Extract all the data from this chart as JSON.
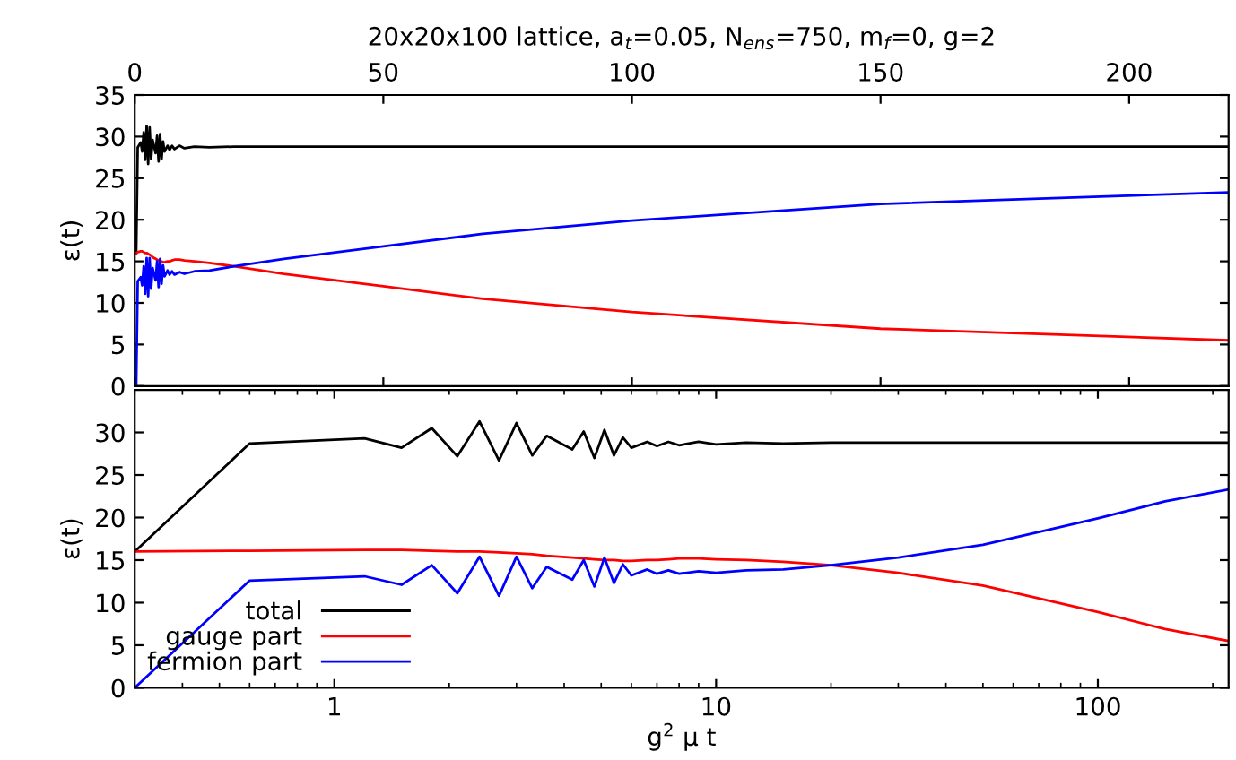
{
  "chart_data": [
    {
      "type": "line",
      "title": "20x20x100 lattice, a$_{t}$=0.05, N$_{ens}$=750, m$_{f}$=0, g=2",
      "ylabel": "ε(t)",
      "x": [
        0.3,
        0.6,
        1.2,
        1.5,
        1.8,
        2.1,
        2.4,
        2.7,
        3.0,
        3.3,
        3.6,
        4.2,
        4.5,
        4.8,
        5.1,
        5.4,
        5.7,
        6.0,
        6.6,
        7.0,
        7.5,
        8,
        9,
        10,
        12,
        15,
        20,
        30,
        50,
        70,
        100,
        150,
        220
      ],
      "series": [
        {
          "color": "#000000",
          "values": [
            16,
            28.7,
            29.3,
            28.2,
            30.5,
            27.2,
            31.3,
            26.7,
            31.1,
            27.3,
            29.6,
            28.0,
            30.1,
            27.0,
            30.3,
            27.3,
            29.4,
            28.2,
            28.9,
            28.4,
            28.9,
            28.5,
            28.9,
            28.6,
            28.8,
            28.7,
            28.8,
            28.8,
            28.8,
            28.8,
            28.8,
            28.8,
            28.8
          ]
        },
        {
          "color": "#ff0000",
          "values": [
            16,
            16.1,
            16.2,
            16.2,
            16.1,
            16.0,
            16.0,
            15.9,
            15.8,
            15.7,
            15.5,
            15.3,
            15.2,
            15.1,
            15.0,
            15.0,
            14.9,
            14.9,
            15.0,
            15.0,
            15.1,
            15.2,
            15.2,
            15.1,
            15.0,
            14.8,
            14.4,
            13.5,
            12.0,
            10.5,
            8.9,
            6.9,
            5.5
          ]
        },
        {
          "color": "#0000ff",
          "values": [
            0,
            12.6,
            13.1,
            12.1,
            14.4,
            11.1,
            15.4,
            10.8,
            15.4,
            11.7,
            14.2,
            12.7,
            15.0,
            11.9,
            15.3,
            12.3,
            14.5,
            13.2,
            13.9,
            13.4,
            13.8,
            13.4,
            13.7,
            13.5,
            13.8,
            13.9,
            14.4,
            15.3,
            16.8,
            18.3,
            19.9,
            21.9,
            23.3
          ]
        }
      ],
      "xlim": [
        0,
        220
      ],
      "xticks": [
        0,
        50,
        100,
        150,
        200
      ],
      "ylim": [
        0,
        35
      ],
      "yticks": [
        0,
        5,
        10,
        15,
        20,
        25,
        30,
        35
      ],
      "grid": false,
      "legend": false
    },
    {
      "type": "line",
      "xlabel": "g$^{2}$ μ t",
      "ylabel": "ε(t)",
      "log": "x",
      "x": [
        0.3,
        0.6,
        1.2,
        1.5,
        1.8,
        2.1,
        2.4,
        2.7,
        3.0,
        3.3,
        3.6,
        4.2,
        4.5,
        4.8,
        5.1,
        5.4,
        5.7,
        6.0,
        6.6,
        7.0,
        7.5,
        8,
        9,
        10,
        12,
        15,
        20,
        30,
        50,
        70,
        100,
        150,
        220
      ],
      "series": [
        {
          "name": "total",
          "color": "#000000",
          "values": [
            16,
            28.7,
            29.3,
            28.2,
            30.5,
            27.2,
            31.3,
            26.7,
            31.1,
            27.3,
            29.6,
            28.0,
            30.1,
            27.0,
            30.3,
            27.3,
            29.4,
            28.2,
            28.9,
            28.4,
            28.9,
            28.5,
            28.9,
            28.6,
            28.8,
            28.7,
            28.8,
            28.8,
            28.8,
            28.8,
            28.8,
            28.8,
            28.8
          ]
        },
        {
          "name": "gauge part",
          "color": "#ff0000",
          "values": [
            16,
            16.1,
            16.2,
            16.2,
            16.1,
            16.0,
            16.0,
            15.9,
            15.8,
            15.7,
            15.5,
            15.3,
            15.2,
            15.1,
            15.0,
            15.0,
            14.9,
            14.9,
            15.0,
            15.0,
            15.1,
            15.2,
            15.2,
            15.1,
            15.0,
            14.8,
            14.4,
            13.5,
            12.0,
            10.5,
            8.9,
            6.9,
            5.5
          ]
        },
        {
          "name": "fermion part",
          "color": "#0000ff",
          "values": [
            0,
            12.6,
            13.1,
            12.1,
            14.4,
            11.1,
            15.4,
            10.8,
            15.4,
            11.7,
            14.2,
            12.7,
            15.0,
            11.9,
            15.3,
            12.3,
            14.5,
            13.2,
            13.9,
            13.4,
            13.8,
            13.4,
            13.7,
            13.5,
            13.8,
            13.9,
            14.4,
            15.3,
            16.8,
            18.3,
            19.9,
            21.9,
            23.3
          ]
        }
      ],
      "xlim": [
        0.3,
        220
      ],
      "xticks": [
        1,
        10,
        100
      ],
      "ylim": [
        0,
        35
      ],
      "yticks": [
        0,
        5,
        10,
        15,
        20,
        25,
        30
      ],
      "grid": false,
      "legend": "bottom left"
    }
  ]
}
